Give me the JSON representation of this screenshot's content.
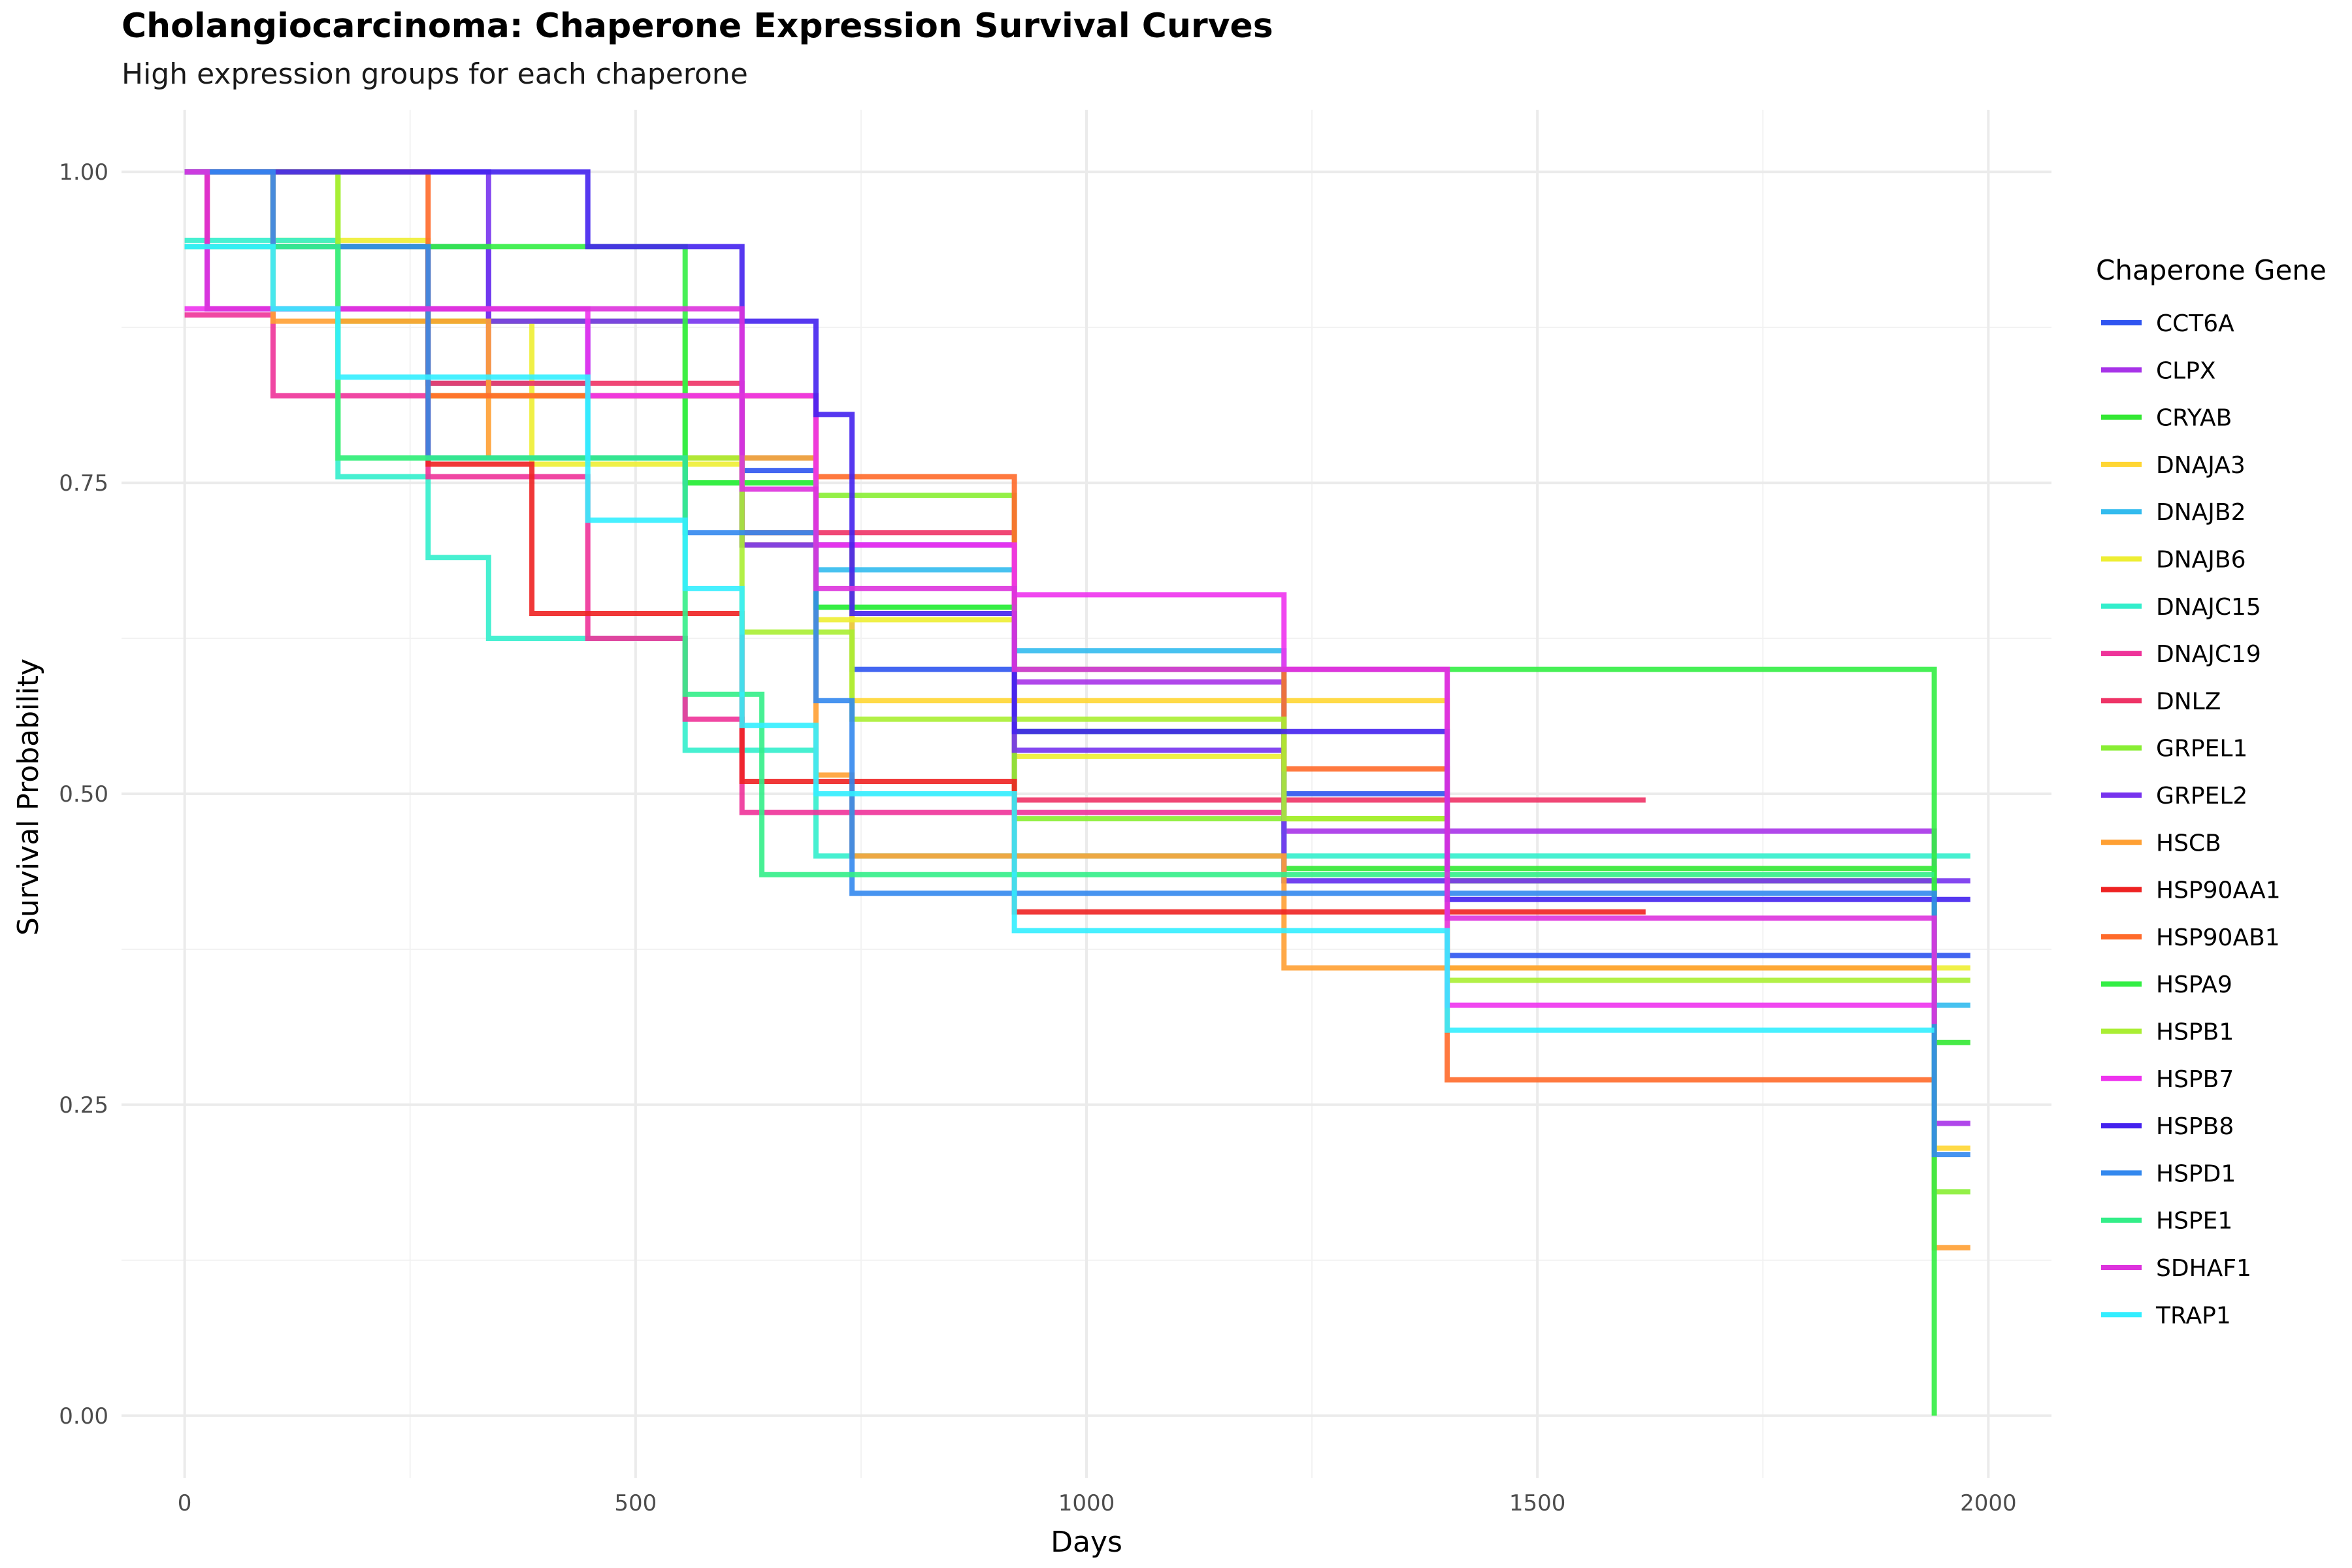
{
  "chart_data": {
    "type": "line",
    "step": true,
    "title": "Cholangiocarcinoma: Chaperone Expression Survival Curves",
    "subtitle": "High expression groups for each chaperone",
    "xlabel": "Days",
    "ylabel": "Survival Probability",
    "xlim": [
      -70,
      2070
    ],
    "ylim": [
      -0.05,
      1.05
    ],
    "x_ticks": [
      0,
      500,
      1000,
      1500,
      2000
    ],
    "x_tick_labels": [
      "0",
      "500",
      "1000",
      "1500",
      "2000"
    ],
    "y_ticks": [
      0,
      0.25,
      0.5,
      0.75,
      1.0
    ],
    "y_tick_labels": [
      "0.00",
      "0.25",
      "0.50",
      "0.75",
      "1.00"
    ],
    "grid": true,
    "legend_title": "Chaperone Gene",
    "legend_position": "right",
    "series": [
      {
        "name": "CCT6A",
        "color": "#2F55F0",
        "x": [
          0,
          98,
          337,
          447,
          618,
          700,
          740,
          920,
          1219,
          1400,
          1980
        ],
        "y": [
          1.0,
          0.94,
          0.88,
          0.82,
          0.76,
          0.7,
          0.6,
          0.55,
          0.5,
          0.37,
          0.37
        ]
      },
      {
        "name": "CLPX",
        "color": "#A733E8",
        "x": [
          0,
          25,
          337,
          618,
          920,
          1219,
          1940,
          1980
        ],
        "y": [
          1.0,
          0.89,
          0.82,
          0.7,
          0.59,
          0.47,
          0.235,
          0.235
        ]
      },
      {
        "name": "CRYAB",
        "color": "#33E833",
        "x": [
          0,
          98,
          270,
          555,
          700,
          920,
          1219,
          1940,
          1980
        ],
        "y": [
          1.0,
          0.94,
          0.82,
          0.75,
          0.65,
          0.55,
          0.44,
          0.3,
          0.3
        ]
      },
      {
        "name": "DNAJA3",
        "color": "#FFD633",
        "x": [
          0,
          98,
          270,
          618,
          740,
          920,
          1400,
          1940,
          1980
        ],
        "y": [
          1.0,
          0.94,
          0.82,
          0.7,
          0.575,
          0.575,
          0.43,
          0.215,
          0.215
        ]
      },
      {
        "name": "DNAJB2",
        "color": "#33BBEE",
        "x": [
          0,
          98,
          270,
          447,
          700,
          920,
          1219,
          1940,
          1980
        ],
        "y": [
          1.0,
          0.94,
          0.83,
          0.77,
          0.68,
          0.615,
          0.43,
          0.33,
          0.33
        ]
      },
      {
        "name": "DNAJB6",
        "color": "#EEEE33",
        "x": [
          0,
          98,
          270,
          385,
          618,
          700,
          920,
          1219,
          1400,
          1980
        ],
        "y": [
          1.0,
          0.945,
          0.88,
          0.765,
          0.71,
          0.64,
          0.53,
          0.48,
          0.36,
          0.36
        ]
      },
      {
        "name": "DNAJC15",
        "color": "#33EECC",
        "x": [
          0,
          170,
          270,
          337,
          555,
          700,
          1400,
          1940,
          1980
        ],
        "y": [
          0.945,
          0.755,
          0.69,
          0.625,
          0.535,
          0.45,
          0.45,
          0.45,
          0.45
        ]
      },
      {
        "name": "DNAJC19",
        "color": "#EE3399",
        "x": [
          0,
          98,
          270,
          447,
          555,
          618,
          920,
          1220
        ],
        "y": [
          0.885,
          0.82,
          0.755,
          0.625,
          0.56,
          0.485,
          0.485,
          0.485
        ]
      },
      {
        "name": "DNLZ",
        "color": "#EE3366",
        "x": [
          0,
          25,
          270,
          618,
          920,
          1620
        ],
        "y": [
          1.0,
          0.94,
          0.83,
          0.71,
          0.495,
          0.495
        ]
      },
      {
        "name": "GRPEL1",
        "color": "#88EE33",
        "x": [
          0,
          170,
          555,
          700,
          920,
          1400,
          1940,
          1980
        ],
        "y": [
          1.0,
          0.88,
          0.82,
          0.74,
          0.48,
          0.43,
          0.18,
          0.18
        ]
      },
      {
        "name": "GRPEL2",
        "color": "#7733EE",
        "x": [
          0,
          337,
          618,
          920,
          1219,
          1940,
          1980
        ],
        "y": [
          1.0,
          0.88,
          0.7,
          0.535,
          0.43,
          0.43,
          0.43
        ]
      },
      {
        "name": "HSCB",
        "color": "#FFA033",
        "x": [
          0,
          98,
          337,
          700,
          740,
          1219,
          1400,
          1940,
          1980
        ],
        "y": [
          1.0,
          0.88,
          0.77,
          0.515,
          0.45,
          0.36,
          0.36,
          0.135,
          0.135
        ]
      },
      {
        "name": "HSP90AA1",
        "color": "#EE2222",
        "x": [
          0,
          25,
          270,
          385,
          618,
          920,
          1620
        ],
        "y": [
          1.0,
          0.94,
          0.765,
          0.645,
          0.51,
          0.405,
          0.405
        ]
      },
      {
        "name": "HSP90AB1",
        "color": "#FF6A2A",
        "x": [
          0,
          270,
          700,
          920,
          1219,
          1400,
          1940
        ],
        "y": [
          1.0,
          0.82,
          0.755,
          0.6,
          0.52,
          0.27,
          0.27
        ]
      },
      {
        "name": "HSPA9",
        "color": "#33EE44",
        "x": [
          0,
          555,
          700,
          920,
          1400,
          1940
        ],
        "y": [
          0.94,
          0.75,
          0.65,
          0.6,
          0.6,
          0.0
        ]
      },
      {
        "name": "HSPB1",
        "color": "#AAEE33",
        "x": [
          0,
          170,
          618,
          740,
          920,
          1219,
          1400,
          1980
        ],
        "y": [
          1.0,
          0.77,
          0.63,
          0.56,
          0.56,
          0.48,
          0.35,
          0.35
        ]
      },
      {
        "name": "HSPB7",
        "color": "#EE33EE",
        "x": [
          0,
          447,
          700,
          920,
          1219,
          1400,
          1940
        ],
        "y": [
          0.89,
          0.82,
          0.7,
          0.66,
          0.6,
          0.33,
          0.33
        ]
      },
      {
        "name": "HSPB8",
        "color": "#4422EE",
        "x": [
          0,
          447,
          618,
          700,
          740,
          920,
          1400,
          1980
        ],
        "y": [
          1.0,
          0.94,
          0.88,
          0.805,
          0.645,
          0.55,
          0.415,
          0.415
        ]
      },
      {
        "name": "HSPD1",
        "color": "#3388EE",
        "x": [
          0,
          98,
          270,
          555,
          700,
          740,
          1940,
          1980
        ],
        "y": [
          1.0,
          0.94,
          0.77,
          0.71,
          0.575,
          0.42,
          0.21,
          0.21
        ]
      },
      {
        "name": "HSPE1",
        "color": "#33EE88",
        "x": [
          0,
          170,
          555,
          640,
          1400,
          1940
        ],
        "y": [
          0.94,
          0.77,
          0.58,
          0.435,
          0.435,
          0.435
        ]
      },
      {
        "name": "SDHAF1",
        "color": "#DD33DD",
        "x": [
          0,
          25,
          618,
          700,
          920,
          1400,
          1940
        ],
        "y": [
          1.0,
          0.89,
          0.745,
          0.665,
          0.6,
          0.4,
          0.315
        ]
      },
      {
        "name": "TRAP1",
        "color": "#33EEFF",
        "x": [
          0,
          98,
          170,
          447,
          555,
          618,
          700,
          920,
          1400,
          1940
        ],
        "y": [
          0.94,
          0.89,
          0.835,
          0.72,
          0.665,
          0.555,
          0.5,
          0.39,
          0.31,
          0.31
        ]
      }
    ]
  }
}
